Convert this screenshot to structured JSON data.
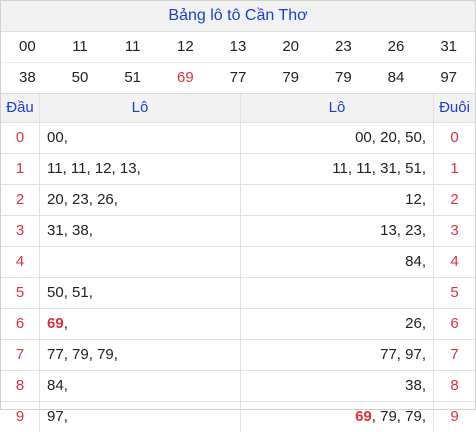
{
  "title": "Bảng lô tô Cần Thơ",
  "numbers": [
    {
      "v": "00",
      "hl": false
    },
    {
      "v": "11",
      "hl": false
    },
    {
      "v": "11",
      "hl": false
    },
    {
      "v": "12",
      "hl": false
    },
    {
      "v": "13",
      "hl": false
    },
    {
      "v": "20",
      "hl": false
    },
    {
      "v": "23",
      "hl": false
    },
    {
      "v": "26",
      "hl": false
    },
    {
      "v": "31",
      "hl": false
    },
    {
      "v": "38",
      "hl": false
    },
    {
      "v": "50",
      "hl": false
    },
    {
      "v": "51",
      "hl": false
    },
    {
      "v": "69",
      "hl": true
    },
    {
      "v": "77",
      "hl": false
    },
    {
      "v": "79",
      "hl": false
    },
    {
      "v": "79",
      "hl": false
    },
    {
      "v": "84",
      "hl": false
    },
    {
      "v": "97",
      "hl": false
    }
  ],
  "headers": {
    "dau": "Đầu",
    "lo_left": "Lô",
    "lo_right": "Lô",
    "duoi": "Đuôi"
  },
  "rows": [
    {
      "dau": "0",
      "left": [
        {
          "t": "00",
          "hl": false
        }
      ],
      "right": [
        {
          "t": "00",
          "hl": false
        },
        {
          "t": "20",
          "hl": false
        },
        {
          "t": "50",
          "hl": false
        }
      ],
      "duoi": "0"
    },
    {
      "dau": "1",
      "left": [
        {
          "t": "11",
          "hl": false
        },
        {
          "t": "11",
          "hl": false
        },
        {
          "t": "12",
          "hl": false
        },
        {
          "t": "13",
          "hl": false
        }
      ],
      "right": [
        {
          "t": "11",
          "hl": false
        },
        {
          "t": "11",
          "hl": false
        },
        {
          "t": "31",
          "hl": false
        },
        {
          "t": "51",
          "hl": false
        }
      ],
      "duoi": "1"
    },
    {
      "dau": "2",
      "left": [
        {
          "t": "20",
          "hl": false
        },
        {
          "t": "23",
          "hl": false
        },
        {
          "t": "26",
          "hl": false
        }
      ],
      "right": [
        {
          "t": "12",
          "hl": false
        }
      ],
      "duoi": "2"
    },
    {
      "dau": "3",
      "left": [
        {
          "t": "31",
          "hl": false
        },
        {
          "t": "38",
          "hl": false
        }
      ],
      "right": [
        {
          "t": "13",
          "hl": false
        },
        {
          "t": "23",
          "hl": false
        }
      ],
      "duoi": "3"
    },
    {
      "dau": "4",
      "left": [],
      "right": [
        {
          "t": "84",
          "hl": false
        }
      ],
      "duoi": "4"
    },
    {
      "dau": "5",
      "left": [
        {
          "t": "50",
          "hl": false
        },
        {
          "t": "51",
          "hl": false
        }
      ],
      "right": [],
      "duoi": "5"
    },
    {
      "dau": "6",
      "left": [
        {
          "t": "69",
          "hl": true
        }
      ],
      "right": [
        {
          "t": "26",
          "hl": false
        }
      ],
      "duoi": "6"
    },
    {
      "dau": "7",
      "left": [
        {
          "t": "77",
          "hl": false
        },
        {
          "t": "79",
          "hl": false
        },
        {
          "t": "79",
          "hl": false
        }
      ],
      "right": [
        {
          "t": "77",
          "hl": false
        },
        {
          "t": "97",
          "hl": false
        }
      ],
      "duoi": "7"
    },
    {
      "dau": "8",
      "left": [
        {
          "t": "84",
          "hl": false
        }
      ],
      "right": [
        {
          "t": "38",
          "hl": false
        }
      ],
      "duoi": "8"
    },
    {
      "dau": "9",
      "left": [
        {
          "t": "97",
          "hl": false
        }
      ],
      "right": [
        {
          "t": "69",
          "hl": true
        },
        {
          "t": "79",
          "hl": false
        },
        {
          "t": "79",
          "hl": false
        }
      ],
      "duoi": "9"
    }
  ],
  "colors": {
    "accent_blue": "#1a3fd6",
    "highlight_red": "#e0303b",
    "header_bg": "#f2f2f2"
  }
}
